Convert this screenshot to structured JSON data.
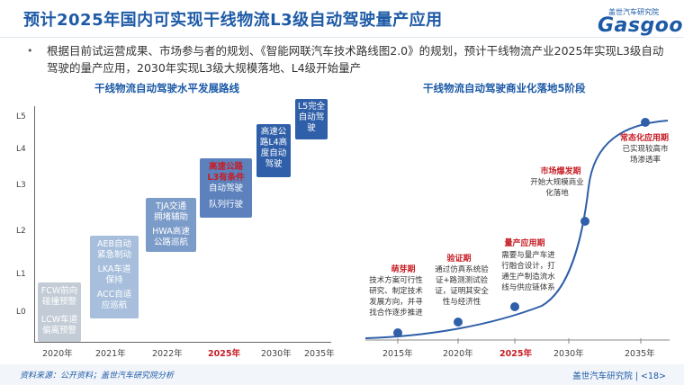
{
  "title": "预计2025年国内可实现干线物流L3级自动驾驶量产应用",
  "logo": {
    "cn": "盖世汽车研究院",
    "en": "Gasgoo"
  },
  "intro": "根据目前试运营成果、市场参与者的规划、《智能网联汽车技术路线图2.0》的规划，预计干线物流产业2025年实现L3级自动驾驶的量产应用，2030年实现L3级大规模落地、L4级开始量产",
  "bullet": "•",
  "left_chart": {
    "title": "干线物流自动驾驶水平发展路线",
    "y_levels": [
      "L5",
      "L4",
      "L3",
      "L2",
      "L1",
      "L0"
    ],
    "x_years": [
      "2020年",
      "2021年",
      "2022年",
      "2025年",
      "2030年",
      "2035年"
    ],
    "highlight_year": "2025年",
    "boxes": {
      "b2020a": [
        "FCW前向",
        "碰撞预警"
      ],
      "b2020b": [
        "LCW车道",
        "偏离预警"
      ],
      "b2021a": [
        "AEB自动",
        "紧急制动"
      ],
      "b2021b": [
        "LKA车道",
        "保持"
      ],
      "b2021c": [
        "ACC自适",
        "应巡航"
      ],
      "b2022a": [
        "TJA交通",
        "拥堵辅助"
      ],
      "b2022b": [
        "HWA高速",
        "公路巡航"
      ],
      "b2025_hl": [
        "高速公路",
        "L3有条件"
      ],
      "b2025": [
        "自动驾驶"
      ],
      "b2025_c": [
        "队列行驶"
      ],
      "b2030": [
        "高速公",
        "路L4高",
        "度自动",
        "驾驶"
      ],
      "b2035": [
        "L5完全",
        "自动驾",
        "驶"
      ]
    }
  },
  "right_chart": {
    "title": "干线物流自动驾驶商业化落地5阶段",
    "x_years": [
      "2015年",
      "2020年",
      "2025年",
      "2030年",
      "2035年"
    ],
    "highlight_year": "2025年",
    "stages": [
      {
        "name": "萌芽期",
        "desc": [
          "技术方案可行性",
          "研究、制定技术",
          "发展方向，并寻",
          "找合作逐步推进"
        ]
      },
      {
        "name": "验证期",
        "desc": [
          "通过仿真系统验",
          "证+路测测试验",
          "证，证明其安全",
          "性与经济性"
        ]
      },
      {
        "name": "量产应用期",
        "desc": [
          "需要与量产车进",
          "行融合设计，打",
          "通生产制造流水",
          "线与供应链体系"
        ]
      },
      {
        "name": "市场爆发期",
        "desc": [
          "开始大规模商业",
          "化落地"
        ]
      },
      {
        "name": "常态化应用期",
        "desc": [
          "已实现较高市",
          "场渗透率"
        ]
      }
    ]
  },
  "footer": {
    "source": "资料来源：公开资料；盖世汽车研究院分析",
    "company": "盖世汽车研究院",
    "page": "| <18>"
  },
  "colors": {
    "brand": "#1d5aa6",
    "highlight": "#c61e26"
  }
}
